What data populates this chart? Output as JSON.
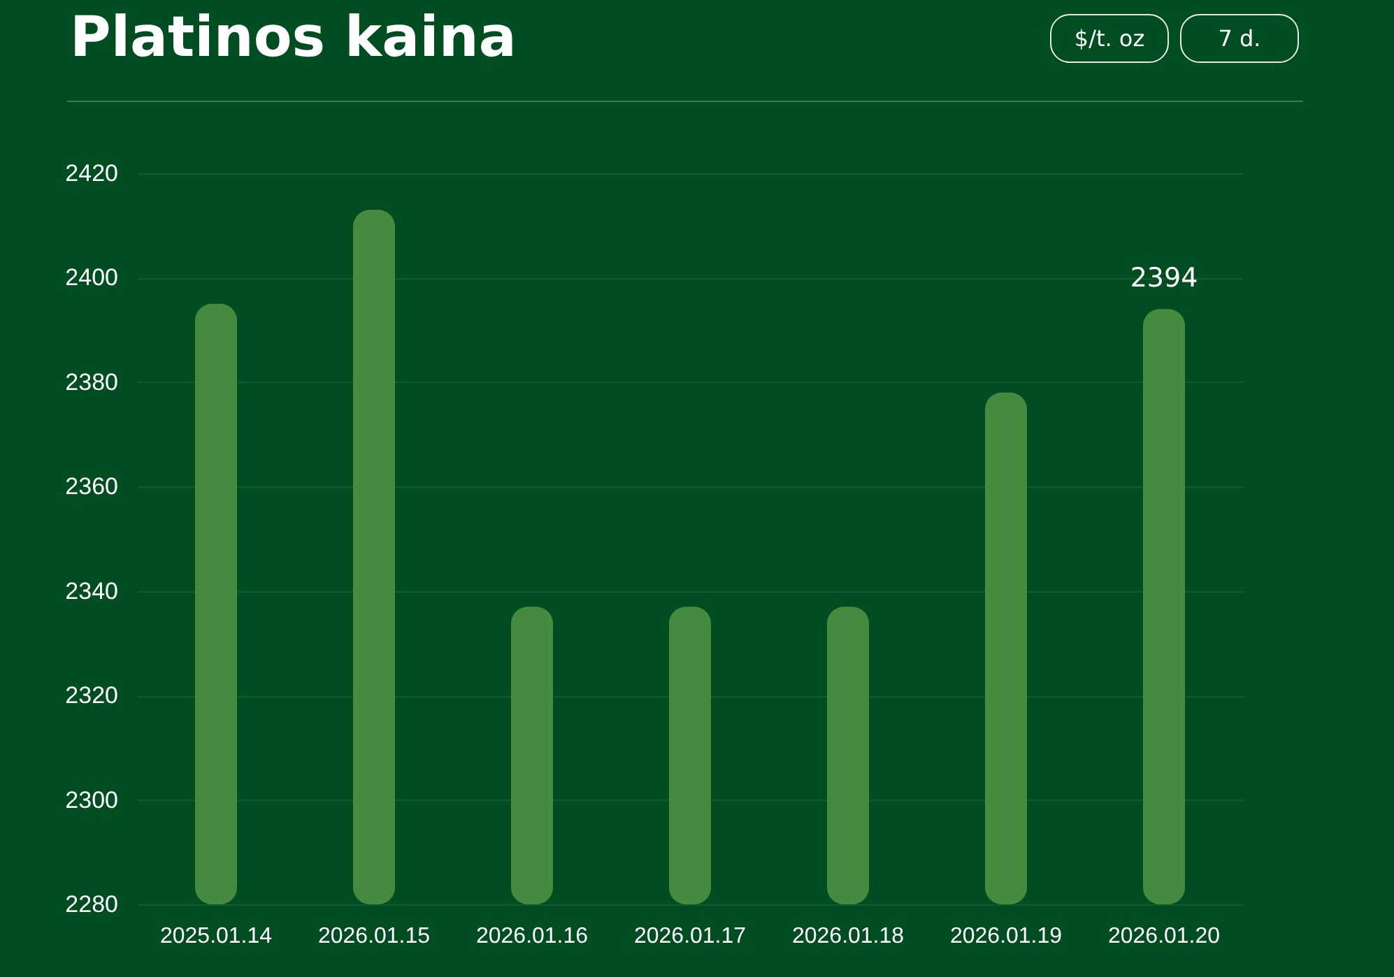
{
  "chart_data": {
    "type": "bar",
    "title": "Platinos kaina",
    "annotations": [
      "$/t. oz",
      "7 d."
    ],
    "categories": [
      "2025.01.14",
      "2026.01.15",
      "2026.01.16",
      "2026.01.17",
      "2026.01.18",
      "2026.01.19",
      "2026.01.20"
    ],
    "values": [
      2395,
      2413,
      2337,
      2337,
      2337,
      2378,
      2394
    ],
    "value_labels": [
      null,
      null,
      null,
      null,
      null,
      null,
      "2394"
    ],
    "color": "#458a3f",
    "ylim": [
      2280,
      2420
    ],
    "yticks": [
      2280,
      2300,
      2320,
      2340,
      2360,
      2380,
      2400,
      2420
    ],
    "grid": "y"
  }
}
